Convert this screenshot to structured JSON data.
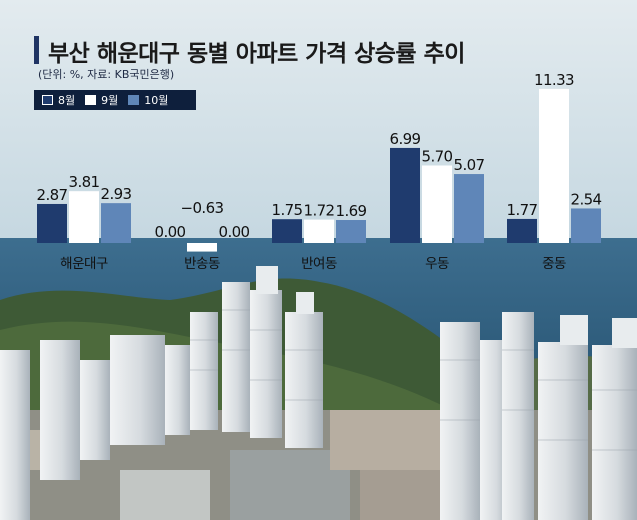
{
  "header": {
    "title": "부산 해운대구 동별 아파트 가격 상승률 추이",
    "subtitle": "(단위: %, 자료: KB국민은행)"
  },
  "colors": {
    "8월": "#1f3b6e",
    "9월": "#ffffff",
    "10월": "#5f86b8"
  },
  "chart_data": {
    "type": "bar",
    "title": "부산 해운대구 동별 아파트 가격 상승률 추이",
    "subtitle": "(단위: %, 자료: KB국민은행)",
    "categories": [
      "해운대구",
      "반송동",
      "반여동",
      "우동",
      "중동"
    ],
    "series": [
      {
        "name": "8월",
        "values": [
          2.87,
          0.0,
          1.75,
          6.99,
          1.77
        ]
      },
      {
        "name": "9월",
        "values": [
          3.81,
          -0.63,
          1.72,
          5.7,
          11.33
        ]
      },
      {
        "name": "10월",
        "values": [
          2.93,
          0.0,
          1.69,
          5.07,
          2.54
        ]
      }
    ],
    "value_labels": [
      [
        "2.87",
        "0.00",
        "1.75",
        "6.99",
        "1.77"
      ],
      [
        "3.81",
        "−0.63",
        "1.72",
        "5.70",
        "11.33"
      ],
      [
        "2.93",
        "0.00",
        "1.69",
        "5.07",
        "2.54"
      ]
    ],
    "legend_position": "top-left",
    "grid": false
  }
}
